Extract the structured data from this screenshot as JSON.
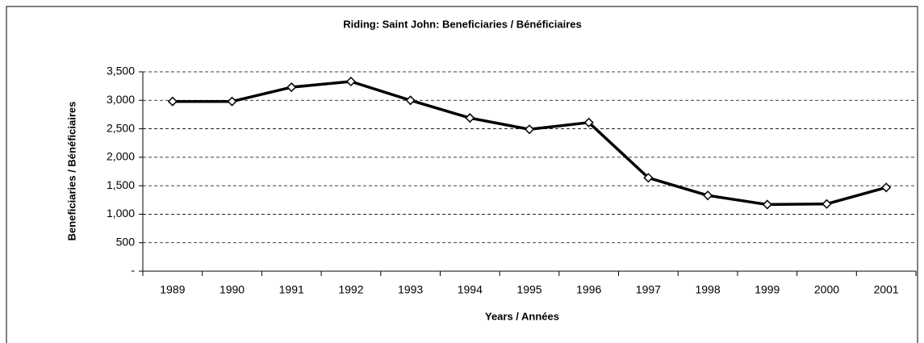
{
  "chart_data": {
    "type": "line",
    "title": "Riding:  Saint John:  Beneficiaries / Bénéficiaires",
    "x_label": "Years / Années",
    "y_label": "Beneficiaries / Bénéficiaires",
    "categories": [
      "1989",
      "1990",
      "1991",
      "1992",
      "1993",
      "1994",
      "1995",
      "1996",
      "1997",
      "1998",
      "1999",
      "2000",
      "2001"
    ],
    "series": [
      {
        "name": "Beneficiaries / Bénéficiaires",
        "color": "#000000",
        "values": [
          2980,
          2980,
          3230,
          3330,
          3000,
          2690,
          2490,
          2610,
          1640,
          1330,
          1170,
          1180,
          1470
        ]
      }
    ],
    "ylim": [
      0,
      3500
    ],
    "yticks": [
      {
        "value": 0,
        "label": "-"
      },
      500,
      {
        "value": 1000,
        "label": "1,000"
      },
      {
        "value": 1500,
        "label": "1,500"
      },
      {
        "value": 2000,
        "label": "2,000"
      },
      {
        "value": 2500,
        "label": "2,500"
      },
      {
        "value": 3000,
        "label": "3,000"
      },
      {
        "value": 3500,
        "label": "3,500"
      }
    ],
    "grid": true
  }
}
